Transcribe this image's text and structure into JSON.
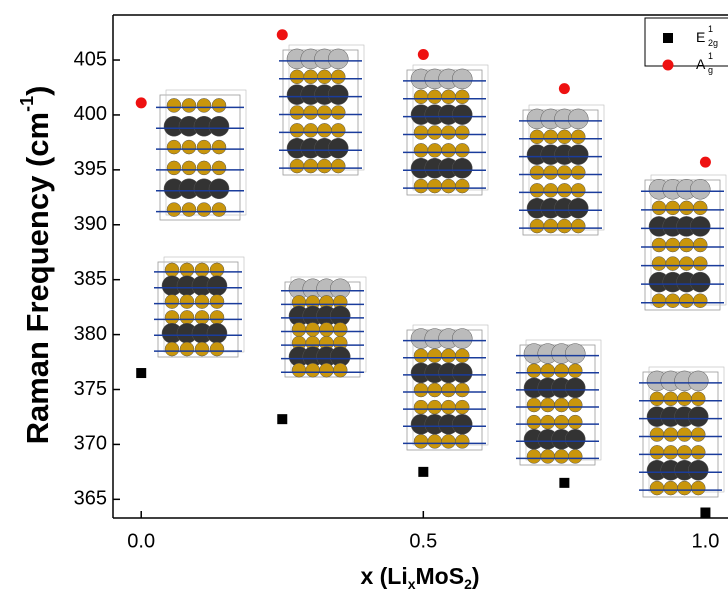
{
  "chart_data": {
    "type": "scatter",
    "ylabel": [
      "Raman Frequency (cm",
      "-1",
      ")"
    ],
    "xlabel": [
      "x (Li",
      "x",
      "MoS",
      "2",
      ")"
    ],
    "x": [
      0,
      0.25,
      0.5,
      0.75,
      1.0
    ],
    "series": [
      {
        "name": "E",
        "name_sub": "2g",
        "name_sup": "1",
        "color": "#000000",
        "marker": "square",
        "values": [
          376.5,
          372.3,
          367.5,
          366.5,
          363.8
        ]
      },
      {
        "name": "A",
        "name_sub": "g",
        "name_sup": "1",
        "color": "#ee1111",
        "marker": "circle",
        "values": [
          401.1,
          407.3,
          405.5,
          402.4,
          395.7
        ]
      }
    ],
    "xlim": [
      -0.05,
      1.04
    ],
    "ylim": [
      363.3,
      409.1
    ],
    "xticks": [
      {
        "value": 0,
        "label": "0.0"
      },
      {
        "value": 0.5,
        "label": "0.5"
      },
      {
        "value": 1.0,
        "label": "1.0"
      }
    ],
    "yticks": [
      365,
      370,
      375,
      380,
      385,
      390,
      395,
      400,
      405
    ],
    "legend": "upper right"
  }
}
